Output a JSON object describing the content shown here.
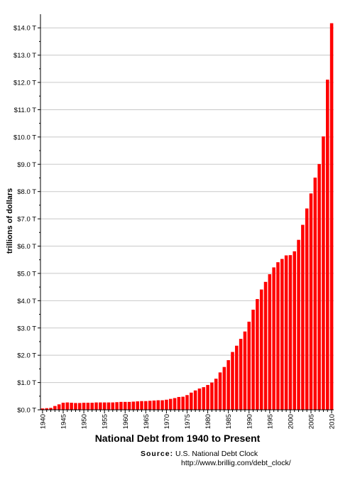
{
  "chart_data": {
    "type": "bar",
    "title": "National Debt from 1940 to Present",
    "ylabel": "trillions of dollars",
    "xlabel": "",
    "ylim": [
      0,
      14.5
    ],
    "y_ticks": [
      0,
      1,
      2,
      3,
      4,
      5,
      6,
      7,
      8,
      9,
      10,
      11,
      12,
      13,
      14
    ],
    "y_tick_labels": [
      "$0.0 T",
      "$1.0 T",
      "$2.0 T",
      "$3.0 T",
      "$4.0 T",
      "$5.0 T",
      "$6.0 T",
      "$7.0 T",
      "$8.0 T",
      "$9.0 T",
      "$10.0 T",
      "$11.0 T",
      "$12.0 T",
      "$13.0 T",
      "$14.0 T"
    ],
    "x_tick_labels": [
      "1940",
      "1945",
      "1950",
      "1955",
      "1960",
      "1965",
      "1970",
      "1975",
      "1980",
      "1985",
      "1990",
      "1995",
      "2000",
      "2005",
      "2010"
    ],
    "grid": true,
    "bar_color": "#ff0000",
    "categories": [
      1940,
      1941,
      1942,
      1943,
      1944,
      1945,
      1946,
      1947,
      1948,
      1949,
      1950,
      1951,
      1952,
      1953,
      1954,
      1955,
      1956,
      1957,
      1958,
      1959,
      1960,
      1961,
      1962,
      1963,
      1964,
      1965,
      1966,
      1967,
      1968,
      1969,
      1970,
      1971,
      1972,
      1973,
      1974,
      1975,
      1976,
      1977,
      1978,
      1979,
      1980,
      1981,
      1982,
      1983,
      1984,
      1985,
      1986,
      1987,
      1988,
      1989,
      1990,
      1991,
      1992,
      1993,
      1994,
      1995,
      1996,
      1997,
      1998,
      1999,
      2000,
      2001,
      2002,
      2003,
      2004,
      2005,
      2006,
      2007,
      2008,
      2009,
      2010
    ],
    "values": [
      0.05,
      0.06,
      0.07,
      0.14,
      0.2,
      0.26,
      0.27,
      0.26,
      0.25,
      0.25,
      0.26,
      0.26,
      0.26,
      0.27,
      0.27,
      0.27,
      0.27,
      0.27,
      0.28,
      0.29,
      0.29,
      0.29,
      0.3,
      0.31,
      0.32,
      0.32,
      0.33,
      0.34,
      0.35,
      0.35,
      0.37,
      0.4,
      0.43,
      0.47,
      0.48,
      0.54,
      0.63,
      0.71,
      0.78,
      0.83,
      0.91,
      1.0,
      1.14,
      1.37,
      1.57,
      1.82,
      2.12,
      2.35,
      2.6,
      2.87,
      3.23,
      3.67,
      4.06,
      4.41,
      4.69,
      4.97,
      5.22,
      5.41,
      5.53,
      5.66,
      5.67,
      5.81,
      6.23,
      6.78,
      7.38,
      7.93,
      8.51,
      9.01,
      10.02,
      12.1,
      14.17
    ]
  },
  "source": {
    "label": "Source:",
    "name": "U.S. National Debt Clock",
    "url": "http://www.brillig.com/debt_clock/"
  }
}
